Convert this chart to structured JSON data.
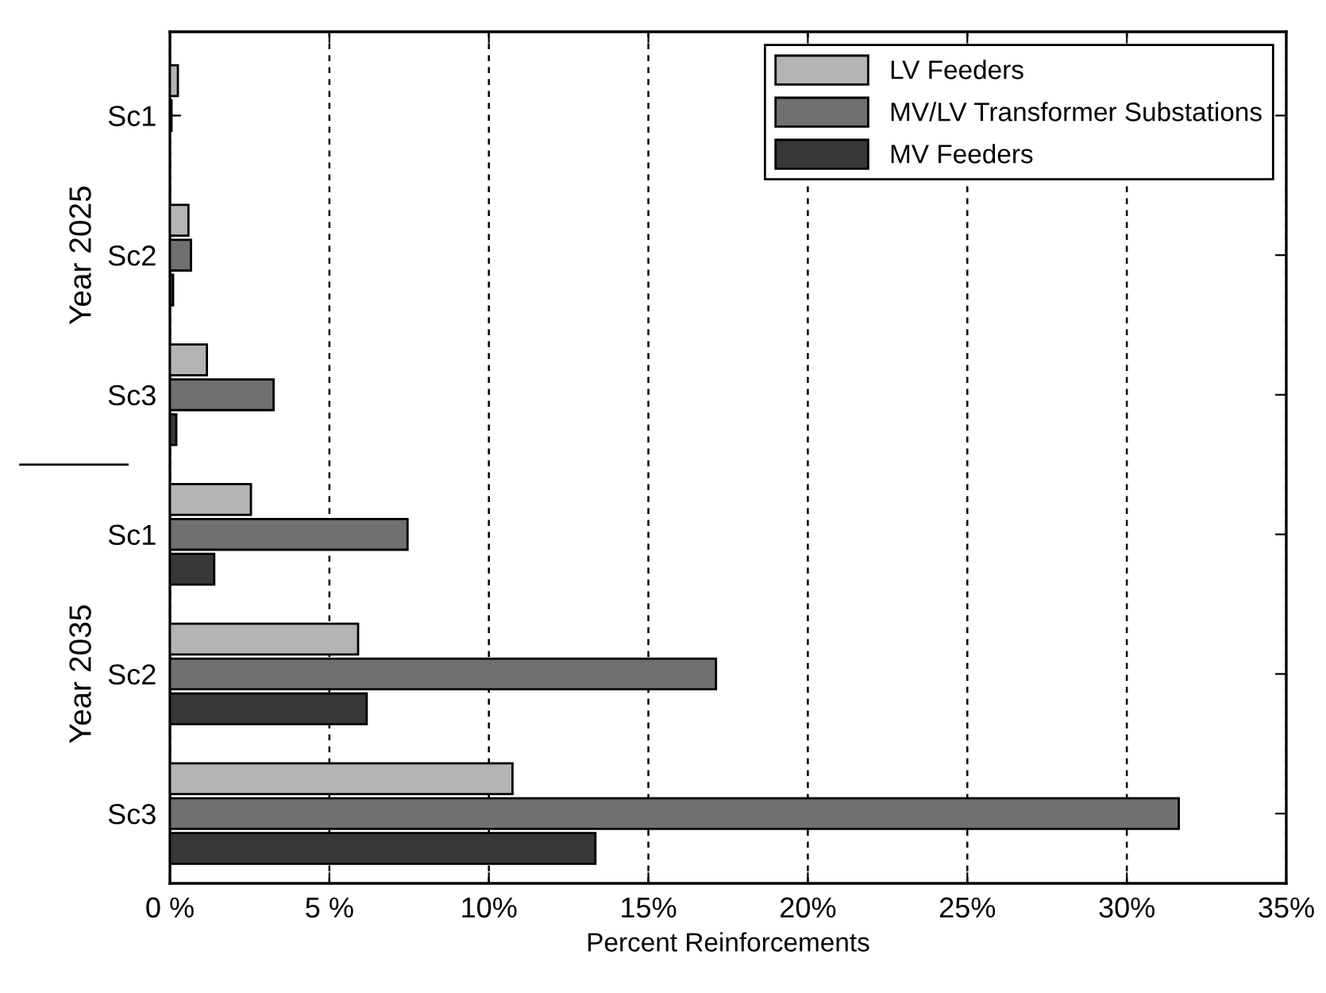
{
  "chart_data": {
    "type": "bar",
    "orientation": "horizontal",
    "xlabel": "Percent Reinforcements",
    "categories": [
      "Sc1",
      "Sc2",
      "Sc3",
      "Sc1",
      "Sc2",
      "Sc3"
    ],
    "series": [
      {
        "name": "LV Feeders",
        "color": "#b4b4b4",
        "values": [
          0.25,
          0.58,
          1.16,
          2.54,
          5.9,
          10.74
        ]
      },
      {
        "name": "MV/LV Transformer Substations",
        "color": "#707070",
        "values": [
          0.05,
          0.66,
          3.25,
          7.45,
          17.12,
          31.63
        ]
      },
      {
        "name": "MV Feeders",
        "color": "#383838",
        "values": [
          null,
          0.1,
          0.2,
          1.39,
          6.17,
          13.34
        ]
      }
    ],
    "xlim": [
      0,
      35
    ],
    "xticks": [
      {
        "value": 0,
        "label": "0 %"
      },
      {
        "value": 5,
        "label": "5 %"
      },
      {
        "value": 10,
        "label": "10%"
      },
      {
        "value": 15,
        "label": "15%"
      },
      {
        "value": 20,
        "label": "20%"
      },
      {
        "value": 25,
        "label": "25%"
      },
      {
        "value": 30,
        "label": "30%"
      },
      {
        "value": 35,
        "label": "35%"
      }
    ],
    "grid": "x",
    "legend": "top right",
    "annotations": [
      "Year 2025",
      "Year 2035"
    ]
  }
}
